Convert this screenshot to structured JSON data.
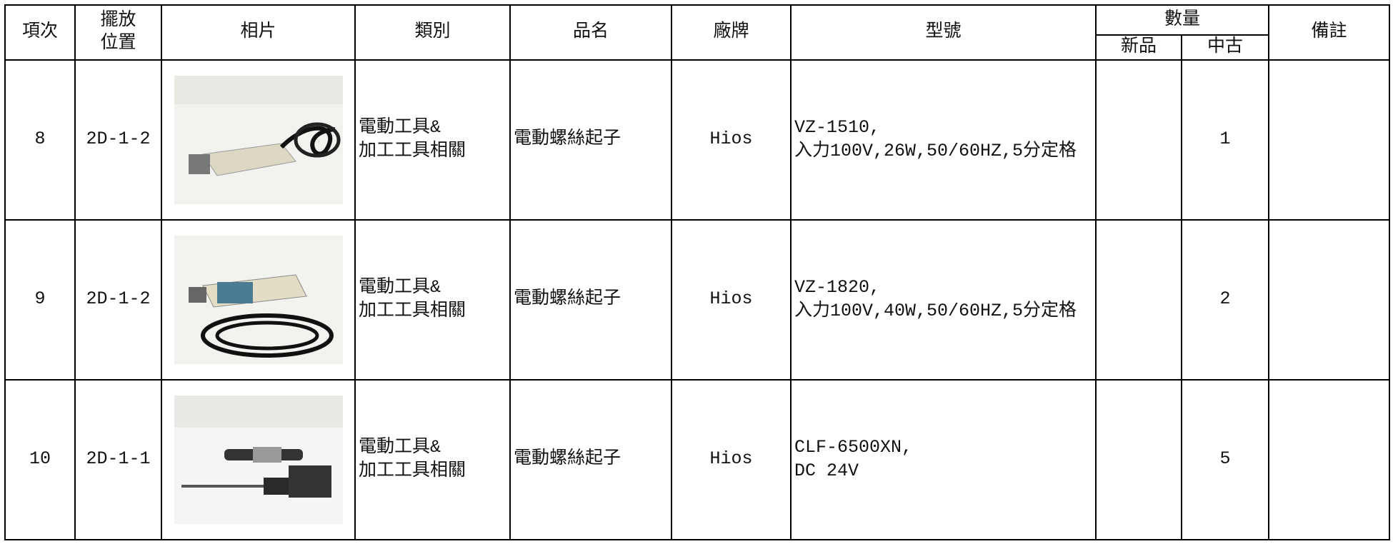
{
  "table": {
    "headers": {
      "no": "項次",
      "location": [
        "擺放",
        "位置"
      ],
      "photo": "相片",
      "category": "類別",
      "name": "品名",
      "brand": "廠牌",
      "model": "型號",
      "quantity": "數量",
      "new": "新品",
      "used": "中古",
      "remark": "備註"
    },
    "rows": [
      {
        "no": "8",
        "location": "2D-1-2",
        "category": [
          "電動工具&",
          "加工工具相關"
        ],
        "name": "電動螺絲起子",
        "brand": "Hios",
        "model": [
          "VZ-1510,",
          "入力100V,26W,50/60HZ,5分定格"
        ],
        "used": "1"
      },
      {
        "no": "9",
        "location": "2D-1-2",
        "category": [
          "電動工具&",
          "加工工具相關"
        ],
        "name": "電動螺絲起子",
        "brand": "Hios",
        "model": [
          "VZ-1820,",
          "入力100V,40W,50/60HZ,5分定格"
        ],
        "used": "2"
      },
      {
        "no": "10",
        "location": "2D-1-1",
        "category": [
          "電動工具&",
          "加工工具相關"
        ],
        "name": "電動螺絲起子",
        "brand": "Hios",
        "model": [
          "CLF-6500XN,",
          "DC 24V"
        ],
        "used": "5"
      }
    ]
  }
}
